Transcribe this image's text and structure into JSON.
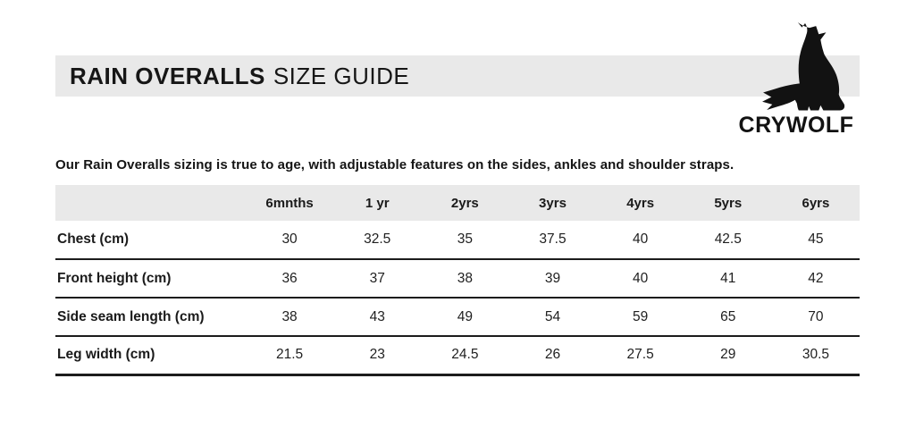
{
  "brand": {
    "name": "CRYWOLF",
    "logo_icon": "wolf-howling-silhouette"
  },
  "header": {
    "title_main": "RAIN OVERALLS",
    "title_sub": "SIZE GUIDE"
  },
  "intro_text": "Our Rain Overalls sizing is true to age, with adjustable features on the sides, ankles and shoulder straps.",
  "colors": {
    "banner_bg": "#e9e9e9",
    "table_header_bg": "#e9e9e9",
    "text": "#1a1a1a",
    "row_border": "#1c1c1c",
    "logo": "#121212"
  },
  "chart_data": {
    "type": "table",
    "title": "Rain Overalls Size Guide",
    "columns": [
      "",
      "6mnths",
      "1 yr",
      "2yrs",
      "3yrs",
      "4yrs",
      "5yrs",
      "6yrs"
    ],
    "rows": [
      {
        "label": "Chest (cm)",
        "values": [
          "30",
          "32.5",
          "35",
          "37.5",
          "40",
          "42.5",
          "45"
        ]
      },
      {
        "label": "Front height (cm)",
        "values": [
          "36",
          "37",
          "38",
          "39",
          "40",
          "41",
          "42"
        ]
      },
      {
        "label": "Side seam length (cm)",
        "values": [
          "38",
          "43",
          "49",
          "54",
          "59",
          "65",
          "70"
        ]
      },
      {
        "label": "Leg width (cm)",
        "values": [
          "21.5",
          "23",
          "24.5",
          "26",
          "27.5",
          "29",
          "30.5"
        ]
      }
    ]
  }
}
